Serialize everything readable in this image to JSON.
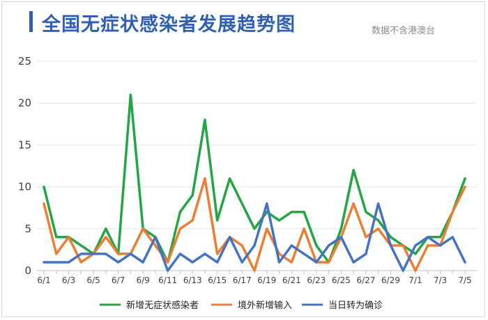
{
  "header": {
    "title": "全国无症状感染者发展趋势图",
    "source_note": "数据不含港澳台"
  },
  "chart_data": {
    "type": "line",
    "x": [
      "6/1",
      "6/2",
      "6/3",
      "6/4",
      "6/5",
      "6/6",
      "6/7",
      "6/8",
      "6/9",
      "6/10",
      "6/11",
      "6/12",
      "6/13",
      "6/14",
      "6/15",
      "6/16",
      "6/17",
      "6/18",
      "6/19",
      "6/20",
      "6/21",
      "6/22",
      "6/23",
      "6/24",
      "6/25",
      "6/26",
      "6/27",
      "6/28",
      "6/29",
      "6/30",
      "7/1",
      "7/2",
      "7/3",
      "7/4",
      "7/5"
    ],
    "xticks_shown": [
      "6/1",
      "6/3",
      "6/5",
      "6/7",
      "6/9",
      "6/11",
      "6/13",
      "6/15",
      "6/17",
      "6/19",
      "6/21",
      "6/23",
      "6/25",
      "6/27",
      "6/29",
      "7/1",
      "7/3",
      "7/5"
    ],
    "ylim": [
      0,
      25
    ],
    "yticks": [
      0,
      5,
      10,
      15,
      20,
      25
    ],
    "grid": true,
    "legend_position": "bottom",
    "series": [
      {
        "name": "新增无症状感染者",
        "color": "#22a543",
        "values": [
          10,
          4,
          4,
          3,
          2,
          5,
          2,
          21,
          5,
          4,
          1,
          7,
          9,
          18,
          6,
          11,
          8,
          5,
          7,
          6,
          7,
          7,
          3,
          1,
          5,
          12,
          7,
          6,
          4,
          3,
          2,
          4,
          4,
          7,
          11
        ]
      },
      {
        "name": "境外新增输入",
        "color": "#ed7d31",
        "values": [
          8,
          2,
          4,
          1,
          2,
          4,
          2,
          2,
          5,
          3,
          1,
          5,
          6,
          11,
          2,
          4,
          3,
          0,
          5,
          2,
          1,
          5,
          1,
          1,
          4,
          8,
          4,
          5,
          3,
          3,
          0,
          3,
          3,
          7,
          10
        ]
      },
      {
        "name": "当日转为确诊",
        "color": "#4472c4",
        "values": [
          1,
          1,
          1,
          2,
          2,
          2,
          1,
          2,
          1,
          4,
          0,
          2,
          1,
          2,
          1,
          4,
          1,
          3,
          8,
          1,
          3,
          2,
          1,
          3,
          4,
          1,
          2,
          8,
          3,
          0,
          3,
          4,
          3,
          4,
          1
        ]
      }
    ]
  }
}
